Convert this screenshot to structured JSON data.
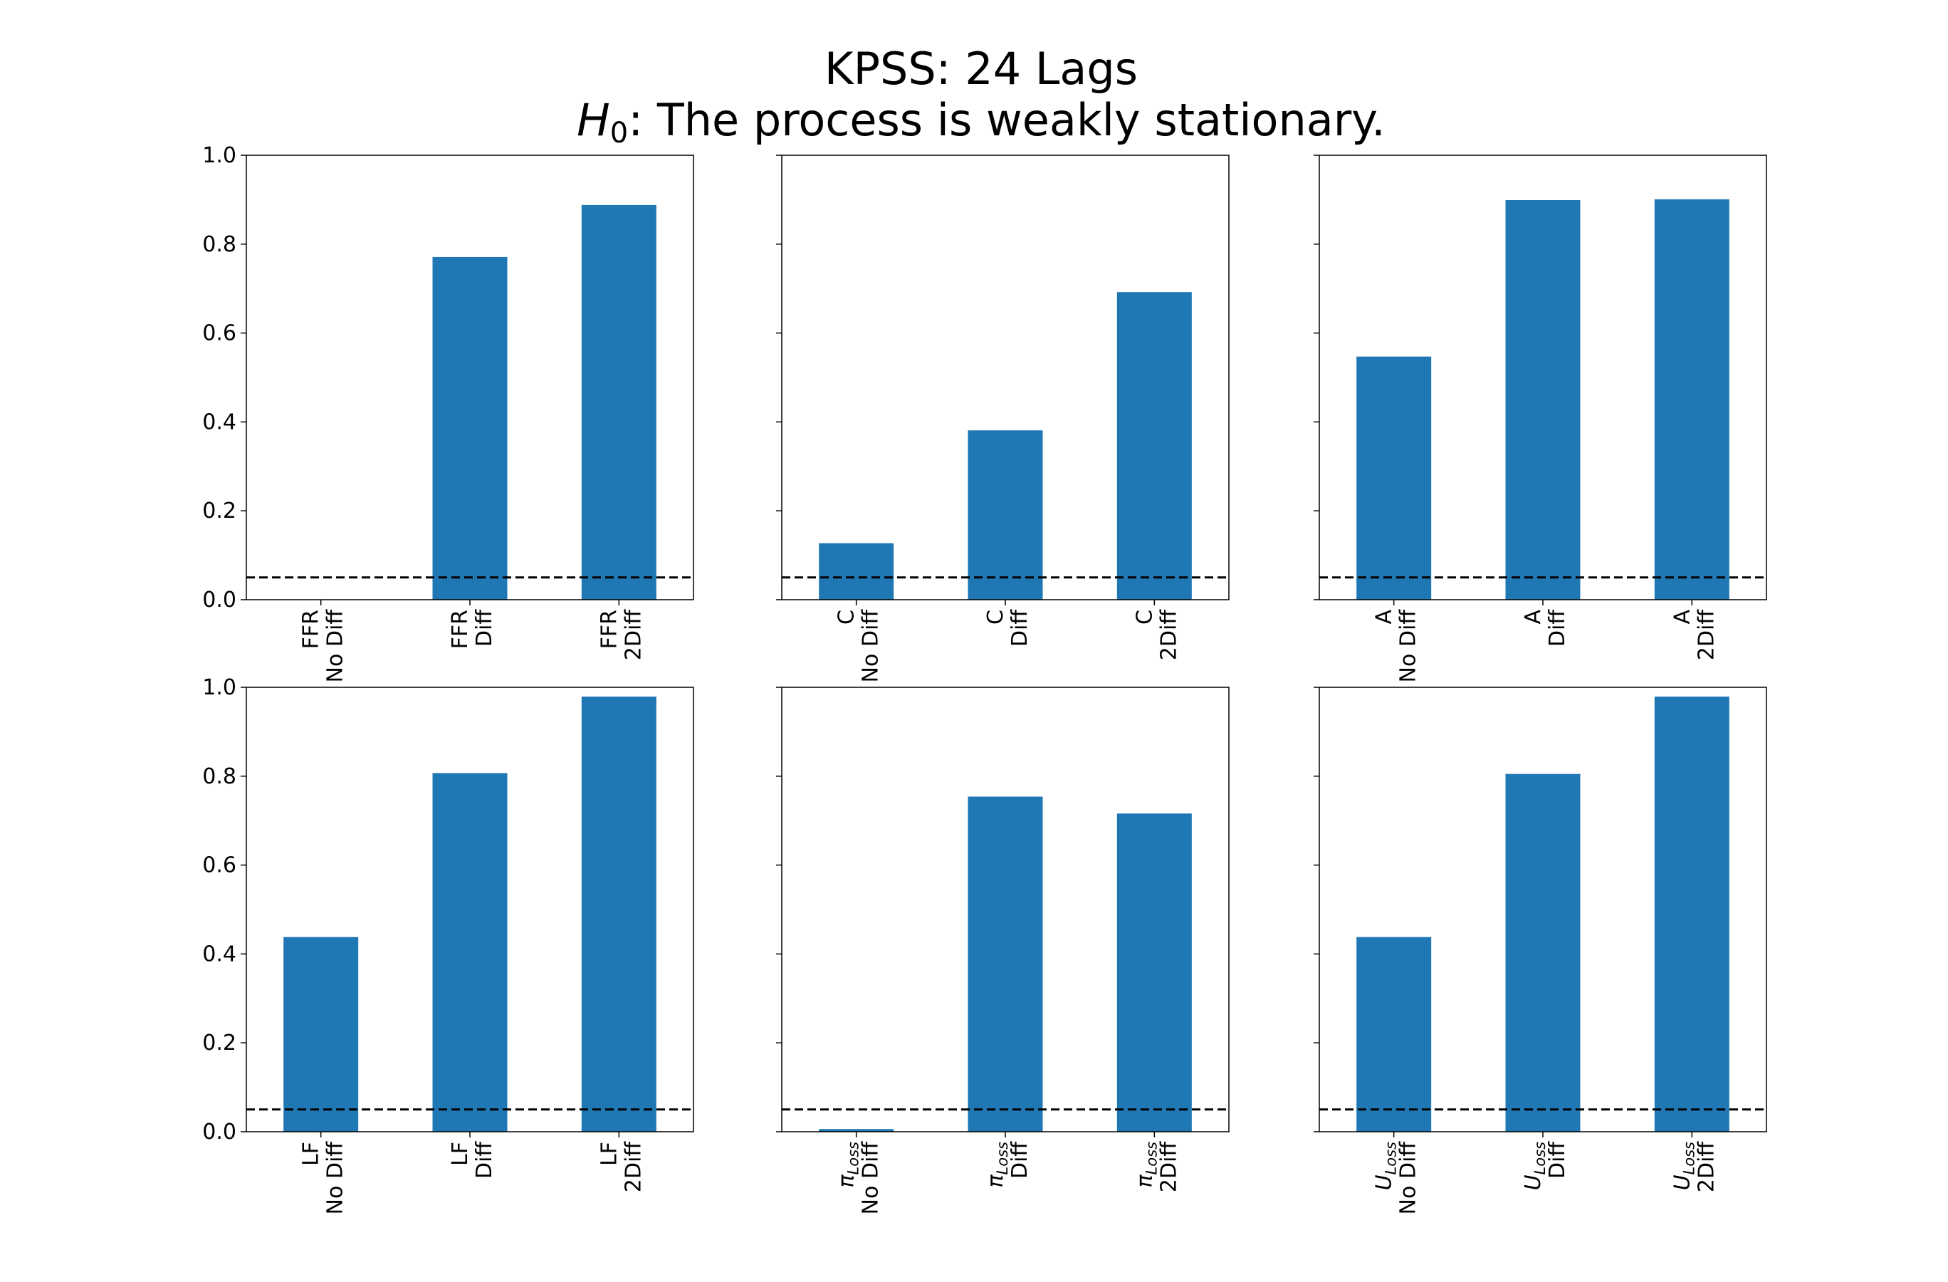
{
  "chart_data": {
    "type": "bar",
    "title_line1": "KPSS: 24 Lags",
    "title_line2_math": "H",
    "title_line2_sub": "0",
    "title_line2_rest": ": The process is weakly stationary.",
    "ylim": [
      0,
      1.0
    ],
    "yticks": [
      "0.0",
      "0.2",
      "0.4",
      "0.6",
      "0.8",
      "1.0"
    ],
    "reference_line": 0.05,
    "bar_color": "#1f77b4",
    "grid": false,
    "panels": [
      {
        "variable": "FFR",
        "categories": [
          {
            "name": "FFR",
            "sub": "",
            "suffix": "No Diff"
          },
          {
            "name": "FFR",
            "sub": "",
            "suffix": "Diff"
          },
          {
            "name": "FFR",
            "sub": "",
            "suffix": "2Diff"
          }
        ],
        "values": [
          0.0,
          0.771,
          0.888
        ]
      },
      {
        "variable": "C",
        "categories": [
          {
            "name": "C",
            "sub": "",
            "suffix": "No Diff"
          },
          {
            "name": "C",
            "sub": "",
            "suffix": "Diff"
          },
          {
            "name": "C",
            "sub": "",
            "suffix": "2Diff"
          }
        ],
        "values": [
          0.127,
          0.381,
          0.692
        ]
      },
      {
        "variable": "A",
        "categories": [
          {
            "name": "A",
            "sub": "",
            "suffix": "No Diff"
          },
          {
            "name": "A",
            "sub": "",
            "suffix": "Diff"
          },
          {
            "name": "A",
            "sub": "",
            "suffix": "2Diff"
          }
        ],
        "values": [
          0.547,
          0.899,
          0.901
        ]
      },
      {
        "variable": "LF",
        "categories": [
          {
            "name": "LF",
            "sub": "",
            "suffix": "No Diff"
          },
          {
            "name": "LF",
            "sub": "",
            "suffix": "Diff"
          },
          {
            "name": "LF",
            "sub": "",
            "suffix": "2Diff"
          }
        ],
        "values": [
          0.438,
          0.807,
          0.979
        ]
      },
      {
        "variable": "π_Loss",
        "categories": [
          {
            "name": "π",
            "sub": "Loss",
            "suffix": "No Diff"
          },
          {
            "name": "π",
            "sub": "Loss",
            "suffix": "Diff"
          },
          {
            "name": "π",
            "sub": "Loss",
            "suffix": "2Diff"
          }
        ],
        "values": [
          0.006,
          0.754,
          0.716
        ]
      },
      {
        "variable": "U_Loss",
        "categories": [
          {
            "name": "U",
            "sub": "Loss",
            "suffix": "No Diff"
          },
          {
            "name": "U",
            "sub": "Loss",
            "suffix": "Diff"
          },
          {
            "name": "U",
            "sub": "Loss",
            "suffix": "2Diff"
          }
        ],
        "values": [
          0.438,
          0.805,
          0.979
        ]
      }
    ]
  }
}
